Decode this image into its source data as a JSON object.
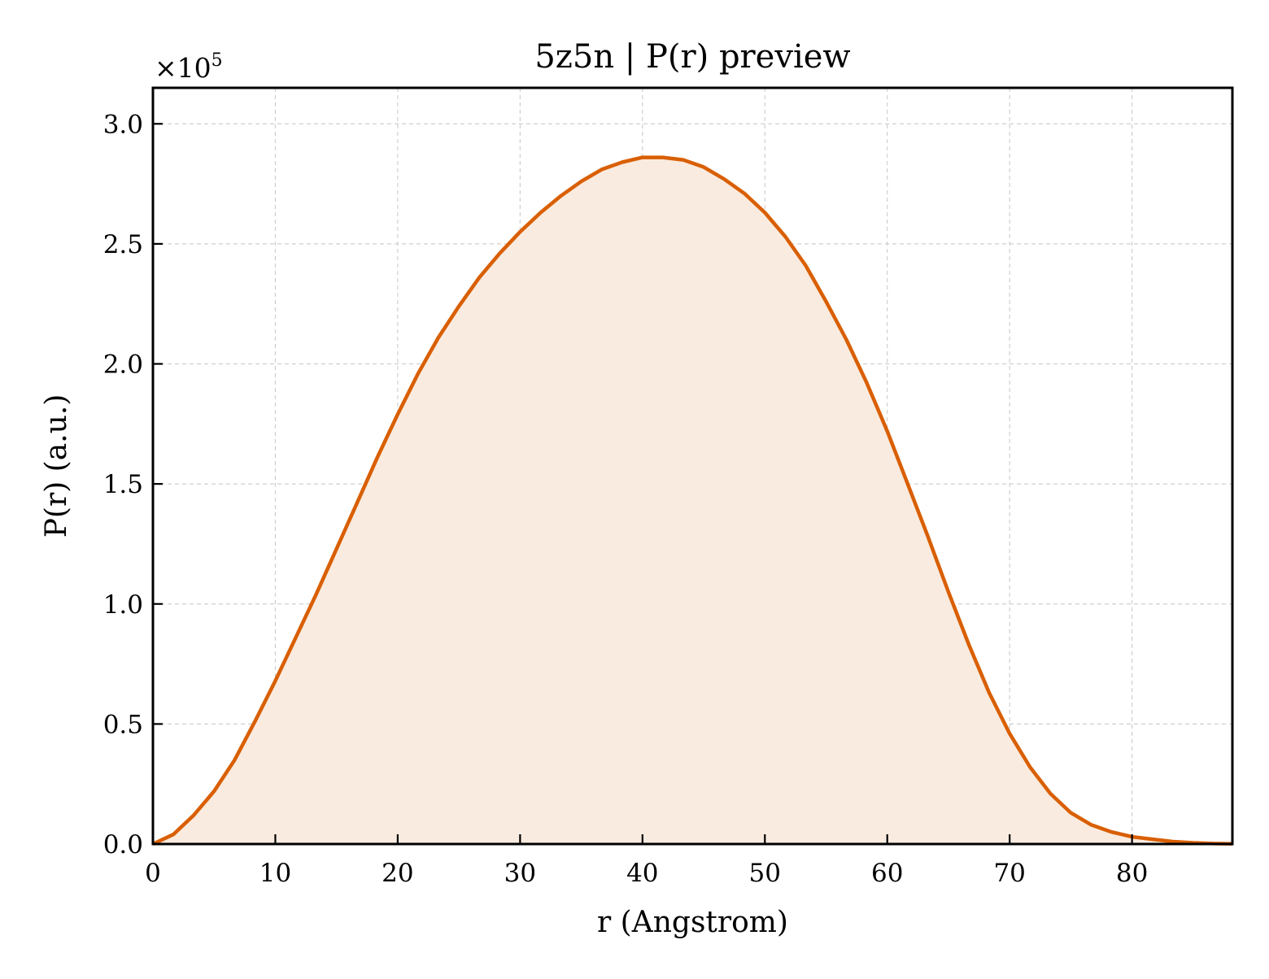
{
  "chart_data": {
    "type": "area",
    "title": "5z5n | P(r) preview",
    "xlabel": "r (Angstrom)",
    "ylabel": "P(r) (a.u.)",
    "y_scale_label": "×10",
    "y_scale_exponent": "5",
    "xlim": [
      0,
      88.2
    ],
    "ylim": [
      0,
      3.15
    ],
    "y_multiplier": 100000,
    "grid": true,
    "x_ticks": [
      0,
      10,
      20,
      30,
      40,
      50,
      60,
      70,
      80
    ],
    "x_tick_labels": [
      "0",
      "10",
      "20",
      "30",
      "40",
      "50",
      "60",
      "70",
      "80"
    ],
    "y_ticks": [
      0,
      0.5,
      1.0,
      1.5,
      2.0,
      2.5,
      3.0
    ],
    "y_tick_labels": [
      "0.0",
      "0.5",
      "1.0",
      "1.5",
      "2.0",
      "2.5",
      "3.0"
    ],
    "colors": {
      "line": "#d95f02",
      "fill": "#f9ebe0"
    },
    "series": [
      {
        "x": [
          0,
          1.67,
          3.33,
          5.0,
          6.67,
          8.33,
          10.0,
          11.67,
          13.33,
          15.0,
          16.67,
          18.33,
          20.0,
          21.67,
          23.33,
          25.0,
          26.67,
          28.33,
          30.0,
          31.67,
          33.33,
          35.0,
          36.67,
          38.33,
          40.0,
          41.67,
          43.33,
          45.0,
          46.67,
          48.33,
          50.0,
          51.67,
          53.33,
          55.0,
          56.67,
          58.33,
          60.0,
          61.67,
          63.33,
          65.0,
          66.67,
          68.33,
          70.0,
          71.67,
          73.33,
          75.0,
          76.67,
          78.33,
          80.0,
          81.67,
          83.33,
          85.0,
          86.67,
          88.2
        ],
        "values": [
          0.0,
          0.04,
          0.12,
          0.22,
          0.35,
          0.51,
          0.68,
          0.86,
          1.04,
          1.23,
          1.42,
          1.61,
          1.79,
          1.96,
          2.11,
          2.24,
          2.36,
          2.46,
          2.55,
          2.63,
          2.7,
          2.76,
          2.81,
          2.84,
          2.86,
          2.86,
          2.85,
          2.82,
          2.77,
          2.71,
          2.63,
          2.53,
          2.41,
          2.26,
          2.1,
          1.92,
          1.72,
          1.5,
          1.28,
          1.05,
          0.83,
          0.63,
          0.46,
          0.32,
          0.21,
          0.13,
          0.08,
          0.05,
          0.03,
          0.02,
          0.01,
          0.005,
          0.002,
          0.001
        ]
      }
    ]
  }
}
